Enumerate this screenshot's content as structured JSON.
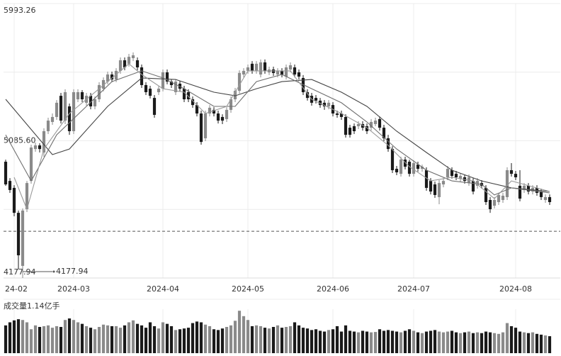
{
  "chart_data": {
    "type": "candlestick",
    "ylim": [
      4177.94,
      5993.26
    ],
    "yticks": [
      5993.26,
      {
        "value": 5085.6,
        "label": "5085.60"
      },
      4177.94
    ],
    "ygrid": [
      5539.43,
      4631.77
    ],
    "xlim": [
      -0.5,
      130.5
    ],
    "xticks": [
      {
        "value": 2,
        "label": "24-02"
      },
      {
        "value": 16,
        "label": "2024-03"
      },
      {
        "value": 37,
        "label": "2024-04"
      },
      {
        "value": 57,
        "label": "2024-05"
      },
      {
        "value": 77,
        "label": "2024-06"
      },
      {
        "value": 96,
        "label": "2024-07"
      },
      {
        "value": 120,
        "label": "2024-08"
      }
    ],
    "up_color": "#8a8a8a",
    "down_color": "#1a1a1a",
    "reference_line": 4487,
    "min_annotation": {
      "index": 4,
      "value": 4177.94
    },
    "candles": [
      [
        4947,
        4961,
        4788,
        4797
      ],
      [
        4820,
        4839,
        4741,
        4760
      ],
      [
        4774,
        4792,
        4586,
        4609
      ],
      [
        4609,
        4624,
        4234,
        4328
      ],
      [
        4258,
        4638,
        4177.94,
        4624
      ],
      [
        4633,
        4820,
        4614,
        4806
      ],
      [
        4820,
        5060,
        4802,
        5041
      ],
      [
        5031,
        5074,
        5013,
        5055
      ],
      [
        5055,
        5069,
        5008,
        5031
      ],
      [
        5008,
        5168,
        4980,
        5149
      ],
      [
        5149,
        5238,
        5130,
        5219
      ],
      [
        5210,
        5266,
        5191,
        5243
      ],
      [
        5243,
        5355,
        5224,
        5337
      ],
      [
        5383,
        5402,
        5200,
        5219
      ],
      [
        5219,
        5426,
        5196,
        5407
      ],
      [
        5313,
        5332,
        5125,
        5149
      ],
      [
        5149,
        5426,
        5130,
        5407
      ],
      [
        5360,
        5426,
        5341,
        5407
      ],
      [
        5407,
        5421,
        5341,
        5360
      ],
      [
        5337,
        5402,
        5318,
        5383
      ],
      [
        5383,
        5402,
        5294,
        5313
      ],
      [
        5313,
        5379,
        5294,
        5360
      ],
      [
        5360,
        5473,
        5341,
        5454
      ],
      [
        5430,
        5505,
        5412,
        5487
      ],
      [
        5477,
        5543,
        5459,
        5524
      ],
      [
        5524,
        5543,
        5473,
        5491
      ],
      [
        5491,
        5566,
        5473,
        5548
      ],
      [
        5548,
        5637,
        5529,
        5618
      ],
      [
        5618,
        5637,
        5552,
        5571
      ],
      [
        5595,
        5660,
        5576,
        5641
      ],
      [
        5632,
        5670,
        5613,
        5651
      ],
      [
        5618,
        5637,
        5552,
        5571
      ],
      [
        5571,
        5590,
        5435,
        5454
      ],
      [
        5454,
        5473,
        5388,
        5407
      ],
      [
        5430,
        5449,
        5365,
        5383
      ],
      [
        5369,
        5388,
        5238,
        5257
      ],
      [
        5407,
        5449,
        5388,
        5430
      ],
      [
        5430,
        5557,
        5412,
        5538
      ],
      [
        5538,
        5557,
        5459,
        5477
      ],
      [
        5477,
        5491,
        5435,
        5454
      ],
      [
        5407,
        5491,
        5388,
        5477
      ],
      [
        5463,
        5482,
        5412,
        5430
      ],
      [
        5430,
        5449,
        5341,
        5360
      ],
      [
        5407,
        5426,
        5341,
        5360
      ],
      [
        5360,
        5379,
        5304,
        5322
      ],
      [
        5322,
        5341,
        5247,
        5266
      ],
      [
        5266,
        5285,
        5060,
        5078
      ],
      [
        5102,
        5285,
        5083,
        5266
      ],
      [
        5266,
        5322,
        5247,
        5304
      ],
      [
        5290,
        5308,
        5247,
        5266
      ],
      [
        5266,
        5285,
        5200,
        5219
      ],
      [
        5243,
        5261,
        5196,
        5219
      ],
      [
        5229,
        5308,
        5210,
        5290
      ],
      [
        5290,
        5379,
        5271,
        5360
      ],
      [
        5360,
        5435,
        5341,
        5416
      ],
      [
        5416,
        5552,
        5398,
        5534
      ],
      [
        5524,
        5566,
        5505,
        5548
      ],
      [
        5548,
        5590,
        5529,
        5571
      ],
      [
        5595,
        5613,
        5529,
        5548
      ],
      [
        5548,
        5613,
        5529,
        5595
      ],
      [
        5524,
        5623,
        5505,
        5604
      ],
      [
        5604,
        5623,
        5529,
        5548
      ],
      [
        5538,
        5576,
        5520,
        5557
      ],
      [
        5557,
        5576,
        5515,
        5534
      ],
      [
        5524,
        5566,
        5505,
        5548
      ],
      [
        5548,
        5566,
        5505,
        5524
      ],
      [
        5510,
        5590,
        5491,
        5571
      ],
      [
        5557,
        5604,
        5538,
        5585
      ],
      [
        5571,
        5590,
        5505,
        5524
      ],
      [
        5538,
        5557,
        5491,
        5510
      ],
      [
        5501,
        5520,
        5388,
        5407
      ],
      [
        5407,
        5426,
        5351,
        5369
      ],
      [
        5383,
        5402,
        5318,
        5337
      ],
      [
        5369,
        5388,
        5332,
        5351
      ],
      [
        5351,
        5369,
        5304,
        5322
      ],
      [
        5337,
        5355,
        5290,
        5313
      ],
      [
        5313,
        5355,
        5294,
        5337
      ],
      [
        5322,
        5341,
        5247,
        5266
      ],
      [
        5266,
        5285,
        5238,
        5257
      ],
      [
        5266,
        5285,
        5224,
        5243
      ],
      [
        5243,
        5261,
        5107,
        5125
      ],
      [
        5172,
        5191,
        5107,
        5125
      ],
      [
        5182,
        5200,
        5130,
        5149
      ],
      [
        5182,
        5215,
        5163,
        5196
      ],
      [
        5196,
        5215,
        5153,
        5172
      ],
      [
        5182,
        5200,
        5130,
        5149
      ],
      [
        5172,
        5229,
        5153,
        5210
      ],
      [
        5196,
        5238,
        5182,
        5219
      ],
      [
        5229,
        5247,
        5153,
        5172
      ],
      [
        5172,
        5191,
        5083,
        5102
      ],
      [
        5102,
        5125,
        5013,
        5031
      ],
      [
        5031,
        5050,
        4872,
        4891
      ],
      [
        4900,
        4919,
        4858,
        4877
      ],
      [
        4867,
        4980,
        4849,
        4961
      ],
      [
        4961,
        4980,
        4896,
        4914
      ],
      [
        4947,
        4961,
        4849,
        4867
      ],
      [
        4867,
        4957,
        4849,
        4938
      ],
      [
        4928,
        4947,
        4881,
        4900
      ],
      [
        4900,
        4928,
        4881,
        4914
      ],
      [
        4891,
        4910,
        4755,
        4774
      ],
      [
        4820,
        4839,
        4731,
        4750
      ],
      [
        4797,
        4816,
        4708,
        4727
      ],
      [
        4713,
        4825,
        4666,
        4806
      ],
      [
        4797,
        4839,
        4778,
        4820
      ],
      [
        4844,
        4919,
        4825,
        4900
      ],
      [
        4891,
        4910,
        4835,
        4853
      ],
      [
        4867,
        4886,
        4825,
        4844
      ],
      [
        4835,
        4872,
        4816,
        4853
      ],
      [
        4844,
        4863,
        4802,
        4820
      ],
      [
        4806,
        4863,
        4788,
        4844
      ],
      [
        4820,
        4839,
        4731,
        4750
      ],
      [
        4788,
        4839,
        4769,
        4820
      ],
      [
        4806,
        4825,
        4769,
        4788
      ],
      [
        4774,
        4792,
        4661,
        4680
      ],
      [
        4694,
        4713,
        4609,
        4633
      ],
      [
        4656,
        4713,
        4638,
        4694
      ],
      [
        4680,
        4741,
        4661,
        4727
      ],
      [
        4694,
        4741,
        4675,
        4722
      ],
      [
        4713,
        4910,
        4694,
        4891
      ],
      [
        4891,
        4938,
        4849,
        4867
      ],
      [
        4867,
        4886,
        4825,
        4844
      ],
      [
        4788,
        4891,
        4685,
        4703
      ],
      [
        4760,
        4806,
        4741,
        4788
      ],
      [
        4788,
        4806,
        4731,
        4750
      ],
      [
        4750,
        4792,
        4731,
        4774
      ],
      [
        4774,
        4792,
        4722,
        4741
      ],
      [
        4750,
        4769,
        4694,
        4713
      ],
      [
        4694,
        4731,
        4675,
        4713
      ],
      [
        4713,
        4731,
        4661,
        4680
      ]
    ],
    "moving_averages": [
      {
        "color": "#444444",
        "x": [
          0,
          11,
          15,
          24,
          32,
          40,
          49,
          54,
          59,
          65,
          72,
          79,
          85,
          92,
          99,
          105,
          112,
          119,
          128
        ],
        "values": [
          5360,
          4994,
          5031,
          5313,
          5501,
          5491,
          5407,
          5383,
          5430,
          5477,
          5491,
          5407,
          5313,
          5149,
          5008,
          4891,
          4820,
          4774,
          4750
        ]
      },
      {
        "color": "#6e6e6e",
        "x": [
          0,
          6,
          12,
          19,
          25,
          32,
          37,
          42,
          49,
          54,
          59,
          65,
          72,
          79,
          85,
          92,
          99,
          105,
          112,
          115,
          119,
          128
        ],
        "values": [
          5125,
          4820,
          5125,
          5313,
          5477,
          5548,
          5501,
          5430,
          5313,
          5313,
          5477,
          5524,
          5430,
          5337,
          5210,
          5031,
          4891,
          4820,
          4797,
          4727,
          4774,
          4741
        ]
      },
      {
        "color": "#9a9a9a",
        "x": [
          2,
          5,
          9,
          15,
          22,
          29,
          32,
          37,
          42,
          47,
          52,
          57,
          62,
          67,
          72,
          79,
          85,
          90,
          95,
          100,
          105,
          110,
          115,
          119,
          128
        ],
        "values": [
          4844,
          4633,
          5031,
          5266,
          5430,
          5595,
          5524,
          5430,
          5407,
          5266,
          5313,
          5548,
          5548,
          5548,
          5360,
          5266,
          5172,
          5055,
          4914,
          4820,
          4844,
          4820,
          4703,
          4820,
          4750
        ]
      }
    ],
    "volume": {
      "label": "成交量1.14亿手",
      "ylim": [
        0,
        1.14
      ],
      "values": [
        0.72,
        0.8,
        0.85,
        0.88,
        0.86,
        0.8,
        0.62,
        0.72,
        0.68,
        0.7,
        0.72,
        0.66,
        0.7,
        0.68,
        0.86,
        0.9,
        0.86,
        0.8,
        0.76,
        0.7,
        0.66,
        0.62,
        0.68,
        0.74,
        0.72,
        0.7,
        0.7,
        0.66,
        0.72,
        0.8,
        0.85,
        0.76,
        0.72,
        0.66,
        0.8,
        0.7,
        0.64,
        0.8,
        0.76,
        0.7,
        0.6,
        0.62,
        0.64,
        0.66,
        0.78,
        0.82,
        0.8,
        0.74,
        0.7,
        0.62,
        0.6,
        0.64,
        0.68,
        0.72,
        0.84,
        1.1,
        0.96,
        0.86,
        0.7,
        0.72,
        0.7,
        0.66,
        0.64,
        0.68,
        0.72,
        0.66,
        0.68,
        0.7,
        0.8,
        0.72,
        0.66,
        0.64,
        0.6,
        0.62,
        0.58,
        0.56,
        0.6,
        0.62,
        0.7,
        0.56,
        0.72,
        0.58,
        0.56,
        0.54,
        0.58,
        0.56,
        0.54,
        0.55,
        0.62,
        0.58,
        0.6,
        0.58,
        0.56,
        0.54,
        0.58,
        0.62,
        0.58,
        0.54,
        0.52,
        0.56,
        0.58,
        0.6,
        0.56,
        0.54,
        0.56,
        0.58,
        0.54,
        0.52,
        0.54,
        0.56,
        0.52,
        0.54,
        0.52,
        0.56,
        0.54,
        0.52,
        0.5,
        0.54,
        0.78,
        0.7,
        0.66,
        0.56,
        0.54,
        0.52,
        0.54,
        0.5,
        0.48,
        0.46,
        0.44
      ]
    }
  }
}
